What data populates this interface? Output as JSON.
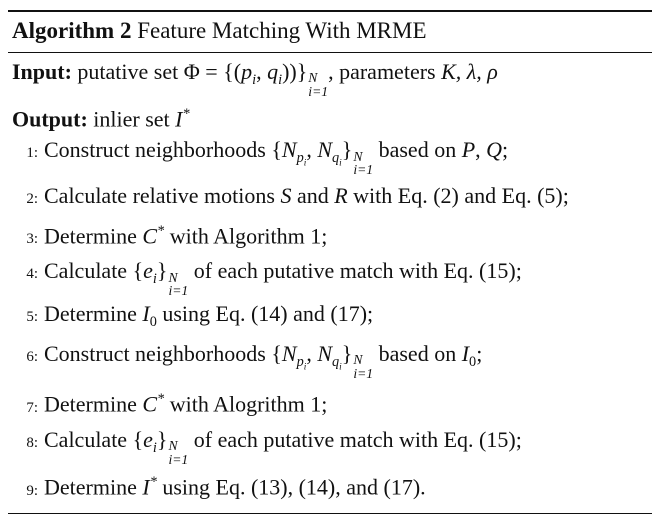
{
  "algorithm": {
    "label": "Algorithm 2",
    "title": "Feature Matching With MRME"
  },
  "input": {
    "keyword": "Input:",
    "text_before": "putative set Φ = {(",
    "p": "p",
    "q": "q",
    "i": "i",
    "text_mid": "))}",
    "range_sup": "N",
    "range_sub": "i=1",
    "text_after": ", parameters ",
    "params": "K, λ, ρ"
  },
  "output": {
    "keyword": "Output:",
    "text": "inlier set ",
    "symbol": "I",
    "star": "*"
  },
  "steps": [
    {
      "num": "1:",
      "text": "Construct neighborhoods {N_{p_i}, N_{q_i}}_{i=1}^N based on P, Q;"
    },
    {
      "num": "2:",
      "text": "Calculate relative motions S and R with Eq. (2) and Eq. (5);"
    },
    {
      "num": "3:",
      "text": "Determine C* with Algorithm 1;"
    },
    {
      "num": "4:",
      "text": "Calculate {e_i}_{i=1}^N of each putative match with Eq. (15);"
    },
    {
      "num": "5:",
      "text": "Determine I_0 using Eq. (14) and (17);"
    },
    {
      "num": "6:",
      "text": "Construct neighborhoods {N_{p_i}, N_{q_i}}_{i=1}^N based on I_0;"
    },
    {
      "num": "7:",
      "text": "Determine C* with Alogrithm 1;"
    },
    {
      "num": "8:",
      "text": "Calculate {e_i}_{i=1}^N of each putative match with Eq. (15);"
    },
    {
      "num": "9:",
      "text": "Determine I* using Eq. (13), (14), and (17)."
    }
  ],
  "fragments": {
    "construct": "Construct neighborhoods {",
    "N": "N",
    "p": "p",
    "q": "q",
    "i": "i",
    "comma": ", ",
    "close": "}",
    "sup_N": "N",
    "sub_i1": "i=1",
    "based_on": " based on ",
    "PQ_P": "P",
    "PQ_sep": ", ",
    "PQ_Q": "Q",
    "semi": ";",
    "calc_rel": "Calculate relative motions ",
    "S": "S",
    "and": " and ",
    "R": "R",
    "with_eq2_eq5": " with Eq. (2) and Eq. (5);",
    "determine": "Determine ",
    "C": "C",
    "star": "*",
    "with_alg1": " with Algorithm 1;",
    "with_alog1": " with Alogrithm 1;",
    "calculate": "Calculate {",
    "e": "e",
    "each_match": " of each putative match with Eq. (15);",
    "I": "I",
    "zero": "0",
    "using_14_17": " using Eq. (14) and (17);",
    "period": ";",
    "using_13_14_17": " using Eq. (13), (14), and (17)."
  }
}
